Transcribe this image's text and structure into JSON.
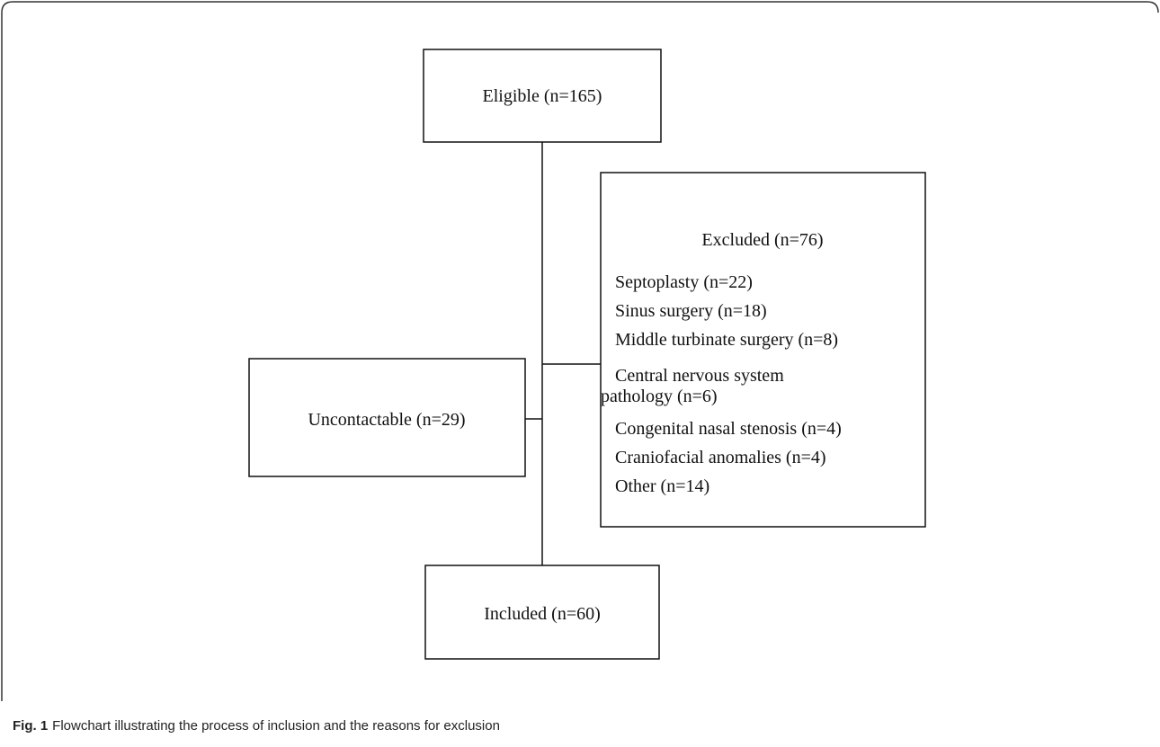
{
  "nodes": {
    "eligible": {
      "label": "Eligible (n=165)"
    },
    "excluded": {
      "label": "Excluded (n=76)",
      "items": [
        "Septoplasty (n=22)",
        "Sinus surgery (n=18)",
        "Middle turbinate surgery (n=8)",
        "Central nervous system",
        "pathology (n=6)",
        "Congenital nasal stenosis (n=4)",
        "Craniofacial anomalies (n=4)",
        "Other (n=14)"
      ]
    },
    "uncontactable": {
      "label": "Uncontactable (n=29)"
    },
    "included": {
      "label": "Included (n=60)"
    }
  },
  "caption": {
    "label": "Fig. 1",
    "text": "Flowchart illustrating the process of inclusion and the reasons for exclusion"
  }
}
